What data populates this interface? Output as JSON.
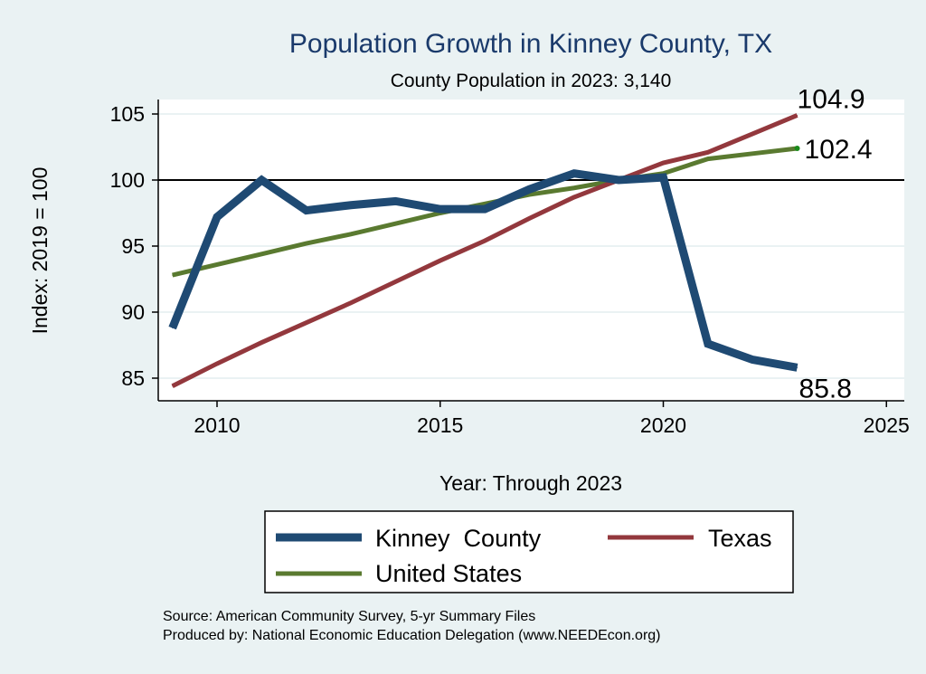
{
  "chart_data": {
    "type": "line",
    "title": "Population Growth in Kinney County, TX",
    "subtitle": "County Population in 2023: 3,140",
    "xlabel": "Year: Through 2023",
    "ylabel": "Index: 2019 = 100",
    "xlim": [
      2009,
      2025
    ],
    "ylim": [
      83.5,
      106
    ],
    "xticks": [
      2010,
      2015,
      2020,
      2025
    ],
    "yticks": [
      85,
      90,
      95,
      100,
      105
    ],
    "reference_line": 100,
    "grid": true,
    "legend_position": "bottom",
    "x": [
      2009,
      2010,
      2011,
      2012,
      2013,
      2014,
      2015,
      2016,
      2017,
      2018,
      2019,
      2020,
      2021,
      2022,
      2023
    ],
    "series": [
      {
        "name": "Kinney  County",
        "color": "#1f4a73",
        "width": 9,
        "values": [
          88.8,
          97.2,
          100.0,
          97.7,
          98.1,
          98.4,
          97.8,
          97.8,
          99.3,
          100.5,
          100.0,
          100.2,
          87.6,
          86.4,
          85.8
        ],
        "end_label": "85.8"
      },
      {
        "name": "Texas",
        "color": "#93383d",
        "width": 5,
        "values": [
          84.4,
          86.1,
          87.7,
          89.2,
          90.7,
          92.3,
          93.9,
          95.4,
          97.1,
          98.7,
          100.0,
          101.3,
          102.1,
          103.5,
          104.9
        ],
        "end_label": "104.9"
      },
      {
        "name": "United States",
        "color": "#5a7a30",
        "width": 5,
        "values": [
          92.8,
          93.6,
          94.4,
          95.2,
          95.9,
          96.7,
          97.5,
          98.2,
          98.9,
          99.4,
          100.0,
          100.5,
          101.6,
          102.0,
          102.4
        ],
        "end_label": "102.4"
      }
    ]
  },
  "footer": {
    "source": "Source: American Community Survey, 5-yr Summary Files",
    "produced": "Produced by: National Economic Education Delegation (www.NEEDEcon.org)"
  }
}
